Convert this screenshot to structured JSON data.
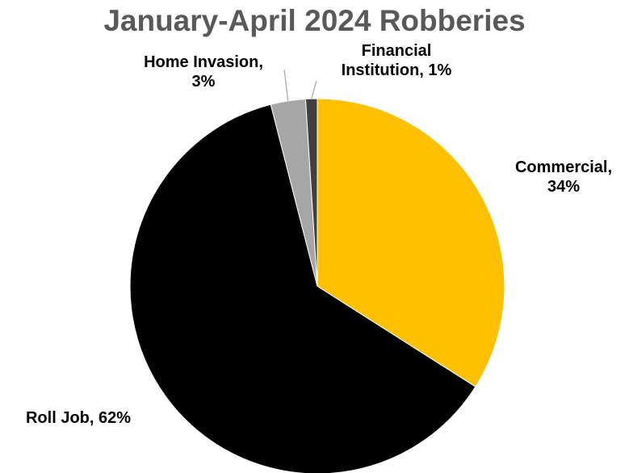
{
  "chart_data": {
    "type": "pie",
    "title": "January-April 2024 Robberies",
    "start_angle_deg": 0,
    "direction": "clockwise",
    "slices": [
      {
        "name": "Commercial",
        "value": 34,
        "label_lines": [
          "Commercial,",
          "34%"
        ],
        "color": "#FFC000"
      },
      {
        "name": "Roll Job",
        "value": 62,
        "label_lines": [
          "Roll Job, 62%"
        ],
        "color": "#000000"
      },
      {
        "name": "Home Invasion",
        "value": 3,
        "label_lines": [
          "Home Invasion,",
          "3%"
        ],
        "color": "#A6A6A6"
      },
      {
        "name": "Financial Institution",
        "value": 1,
        "label_lines": [
          "Financial",
          "Institution, 1%"
        ],
        "color": "#404040"
      }
    ]
  }
}
